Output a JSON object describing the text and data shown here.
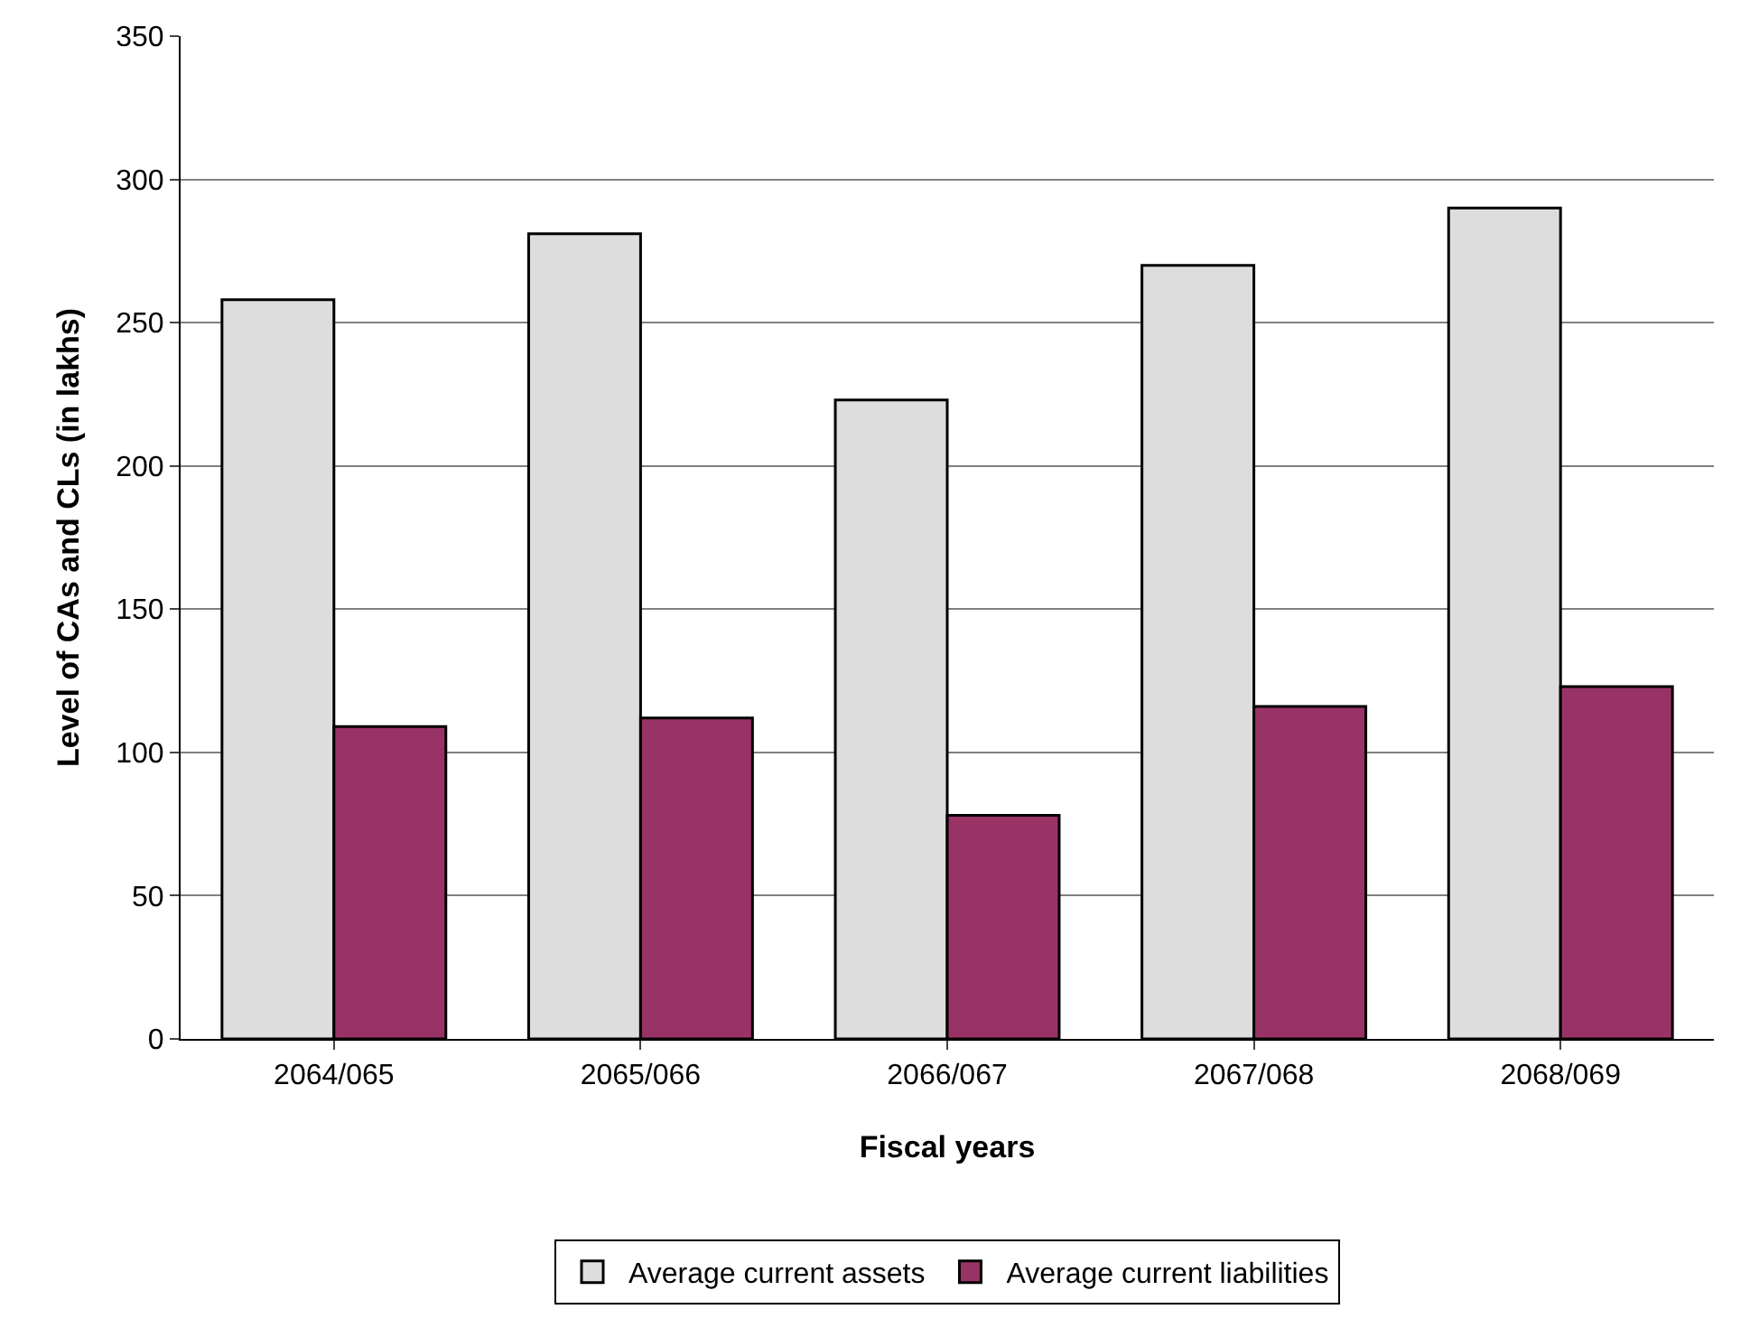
{
  "chart_data": {
    "type": "bar",
    "xlabel": "Fiscal years",
    "ylabel": "Level of CAs and CLs (in lakhs)",
    "categories": [
      "2064/065",
      "2065/066",
      "2066/067",
      "2067/068",
      "2068/069"
    ],
    "series": [
      {
        "name": "Average current assets",
        "color": "#dddddd",
        "values": [
          258,
          281,
          223,
          270,
          290
        ]
      },
      {
        "name": "Average current liabilities",
        "color": "#993366",
        "values": [
          109,
          112,
          78,
          116,
          123
        ]
      }
    ],
    "ylim": [
      0,
      350
    ],
    "yticks": [
      0,
      50,
      100,
      150,
      200,
      250,
      300,
      350
    ],
    "grid": "y",
    "legend": "bottom"
  }
}
